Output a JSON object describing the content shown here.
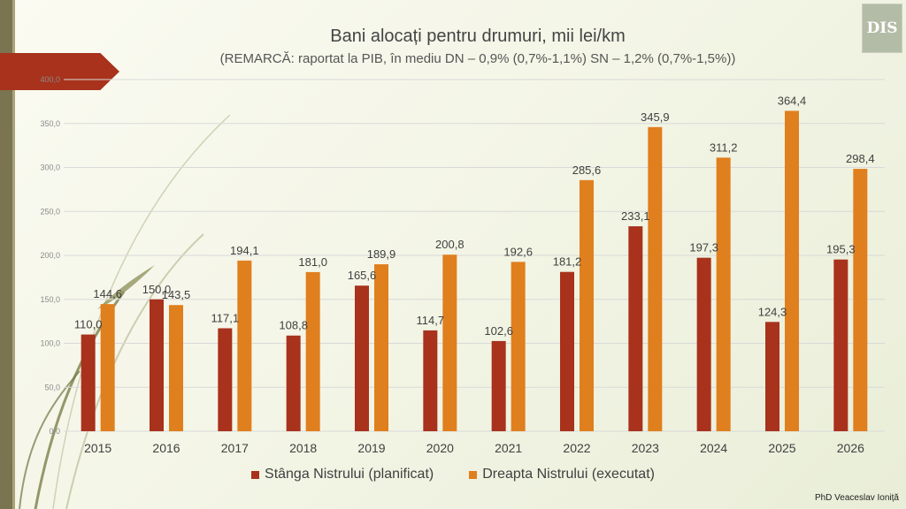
{
  "title": "Bani alocați pentru drumuri, mii lei/km",
  "subtitle": "(REMARCĂ: raportat la PIB, în mediu DN – 0,9% (0,7%-1,1%) SN – 1,2% (0,7%-1,5%))",
  "logo_text": "DIS",
  "author": "PhD Veaceslav Ioniță",
  "colors": {
    "stanga": "#a8321c",
    "dreapta": "#e07f1e",
    "gridline": "#d9d9d9",
    "background": "#f4f5e7",
    "accent_bar": "#7a7550"
  },
  "chart_data": {
    "type": "bar",
    "title": "Bani alocați pentru drumuri, mii lei/km",
    "xlabel": "",
    "ylabel": "",
    "categories": [
      "2015",
      "2016",
      "2017",
      "2018",
      "2019",
      "2020",
      "2021",
      "2022",
      "2023",
      "2024",
      "2025",
      "2026"
    ],
    "ylim": [
      0,
      400
    ],
    "yticks": [
      "0,0",
      "50,0",
      "100,0",
      "150,0",
      "200,0",
      "250,0",
      "300,0",
      "350,0",
      "400,0"
    ],
    "grid": true,
    "legend_position": "bottom",
    "series": [
      {
        "name": "Stânga Nistrului (planificat)",
        "color": "#a8321c",
        "values": [
          110.0,
          150.0,
          117.1,
          108.8,
          165.6,
          114.7,
          102.6,
          181.2,
          233.1,
          197.3,
          124.3,
          195.3
        ],
        "labels": [
          "110,0",
          "150,0",
          "117,1",
          "108,8",
          "165,6",
          "114,7",
          "102,6",
          "181,2",
          "233,1",
          "197,3",
          "124,3",
          "195,3"
        ]
      },
      {
        "name": "Dreapta Nistrului (executat)",
        "color": "#e07f1e",
        "values": [
          144.6,
          143.5,
          194.1,
          181.0,
          189.9,
          200.8,
          192.6,
          285.6,
          345.9,
          311.2,
          364.4,
          298.4
        ],
        "labels": [
          "144,6",
          "143,5",
          "194,1",
          "181,0",
          "189,9",
          "200,8",
          "192,6",
          "285,6",
          "345,9",
          "311,2",
          "364,4",
          "298,4"
        ]
      }
    ]
  }
}
